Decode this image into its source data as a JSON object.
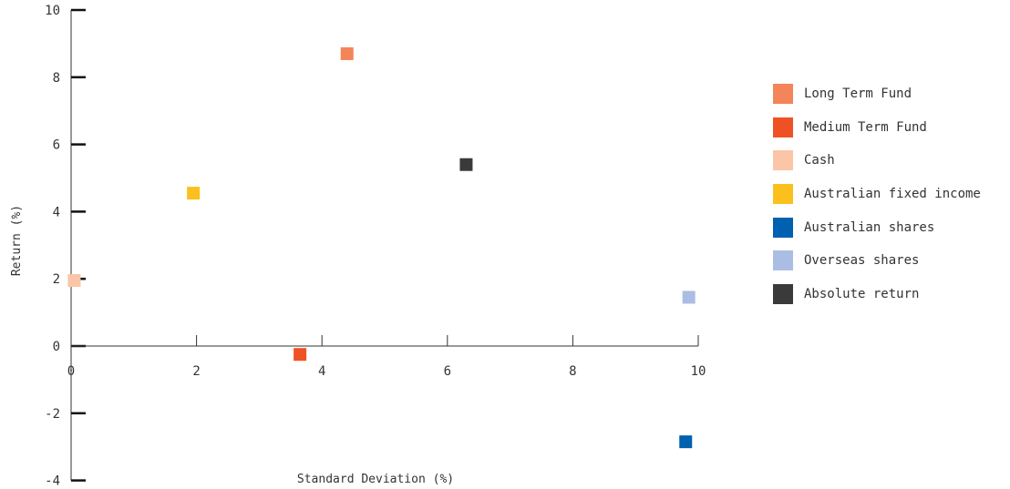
{
  "chart_data": {
    "type": "scatter",
    "xlabel": "Standard Deviation (%)",
    "ylabel": "Return (%)",
    "xlim": [
      0,
      10
    ],
    "ylim": [
      -4,
      10
    ],
    "x_ticks": [
      "0",
      "2",
      "4",
      "6",
      "8",
      "10"
    ],
    "y_ticks": [
      "-4",
      "-2",
      "0",
      "2",
      "4",
      "6",
      "8",
      "10"
    ],
    "grid": false,
    "legend_position": "right",
    "series": [
      {
        "name": "Long Term Fund",
        "color": "#F4845A",
        "points": [
          {
            "x": 4.4,
            "y": 8.7
          }
        ]
      },
      {
        "name": "Medium Term Fund",
        "color": "#EE5224",
        "points": [
          {
            "x": 3.65,
            "y": -0.25
          }
        ]
      },
      {
        "name": "Cash",
        "color": "#FBC5A8",
        "points": [
          {
            "x": 0.05,
            "y": 1.95
          }
        ]
      },
      {
        "name": "Australian fixed income",
        "color": "#FBC01D",
        "points": [
          {
            "x": 1.95,
            "y": 4.55
          }
        ]
      },
      {
        "name": "Australian shares",
        "color": "#0061B0",
        "points": [
          {
            "x": 9.8,
            "y": -2.85
          }
        ]
      },
      {
        "name": "Overseas shares",
        "color": "#ABBDE3",
        "points": [
          {
            "x": 9.85,
            "y": 1.45
          }
        ]
      },
      {
        "name": "Absolute return",
        "color": "#3A3A3A",
        "points": [
          {
            "x": 6.3,
            "y": 5.4
          }
        ]
      }
    ]
  }
}
